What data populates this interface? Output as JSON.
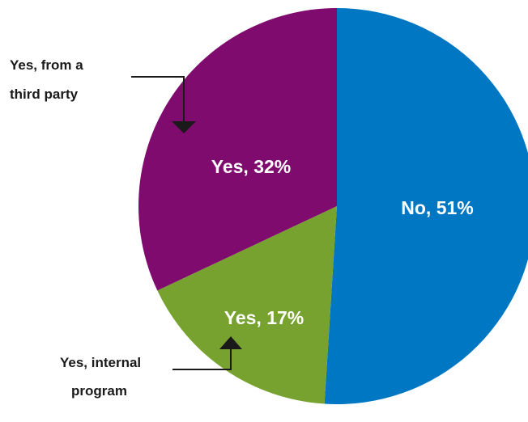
{
  "chart_data": {
    "type": "pie",
    "slices": [
      {
        "label": "No, 51%",
        "value": 51,
        "color": "#0077c2"
      },
      {
        "label": "Yes, 17%",
        "value": 17,
        "color": "#78a22f"
      },
      {
        "label": "Yes, 32%",
        "value": 32,
        "color": "#800b6e"
      }
    ],
    "callouts": [
      {
        "lines": [
          "Yes, from a",
          "third party"
        ],
        "points_to": "Yes, 32%"
      },
      {
        "lines": [
          "Yes, internal",
          "program"
        ],
        "points_to": "Yes, 17%"
      }
    ]
  }
}
